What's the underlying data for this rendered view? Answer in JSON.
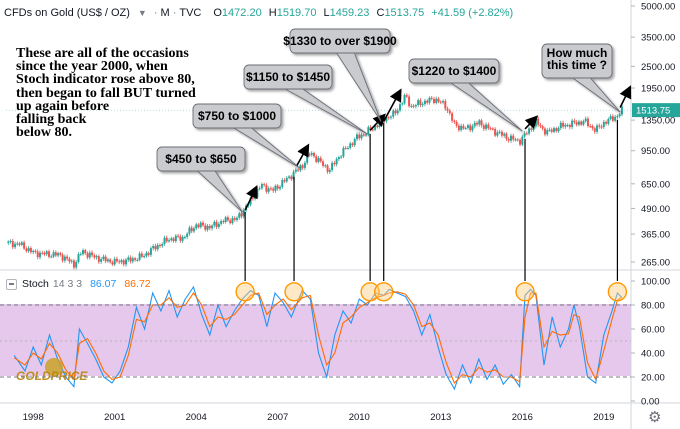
{
  "header": {
    "symbol": "CFDs on Gold (US$ / OZ)",
    "interval": "M",
    "source": "TVC",
    "o_key": "O",
    "o_val": "1472.20",
    "h_key": "H",
    "h_val": "1519.70",
    "l_key": "L",
    "l_val": "1459.23",
    "c_key": "C",
    "c_val": "1513.75",
    "change": "+41.59 (+2.82%)"
  },
  "indicator": {
    "name": "Stoch",
    "params": "14 3 3",
    "k_value": "86.07",
    "d_value": "86.72"
  },
  "intro_text": "These are all of the occasions\nsince the year 2000, when\nStoch indicator rose above 80,\nthen began to fall BUT turned\nup again before\nfalling back\nbelow 80.",
  "callouts": [
    {
      "text": "$450 to $650"
    },
    {
      "text": "$750 to $1000"
    },
    {
      "text": "$1150 to $1450"
    },
    {
      "text": "$1330 to over $1900"
    },
    {
      "text": "$1220 to $1400"
    },
    {
      "text": "How much\nthis time ?"
    }
  ],
  "last_price_label": "1513.75",
  "watermark": "GOLDPRICE",
  "colors": {
    "up": "#26a69a",
    "down": "#ef5350",
    "k_line": "#2196f3",
    "d_line": "#ff6d00",
    "band": "#e1bee7",
    "highlight_circle": "#ff9800",
    "callout_fill": "#c9cbcf"
  },
  "icons": [
    "settings-gear-icon",
    "chevron-down-icon"
  ],
  "chart_data": [
    {
      "type": "line",
      "title": "CFDs on Gold (US$ / OZ)",
      "scale": "log",
      "y_ticks": [
        "5000.00",
        "3500.00",
        "2500.00",
        "1950.00",
        "1350.00",
        "950.00",
        "650.00",
        "490.00",
        "365.00",
        "265.00"
      ],
      "x_ticks": [
        "1998",
        "2001",
        "2004",
        "2007",
        "2010",
        "2013",
        "2016",
        "2019"
      ],
      "series": [
        {
          "name": "CFDs on Gold (US$ / OZ)",
          "points": [
            [
              1997.0,
              330
            ],
            [
              1997.5,
              325
            ],
            [
              1998.0,
              295
            ],
            [
              1998.5,
              290
            ],
            [
              1999.0,
              287
            ],
            [
              1999.5,
              258
            ],
            [
              1999.8,
              300
            ],
            [
              2000.2,
              282
            ],
            [
              2000.6,
              272
            ],
            [
              2001.0,
              265
            ],
            [
              2001.5,
              270
            ],
            [
              2002.0,
              282
            ],
            [
              2002.5,
              315
            ],
            [
              2003.0,
              345
            ],
            [
              2003.5,
              350
            ],
            [
              2004.0,
              405
            ],
            [
              2004.5,
              395
            ],
            [
              2005.0,
              425
            ],
            [
              2005.5,
              435
            ],
            [
              2006.0,
              535
            ],
            [
              2006.4,
              640
            ],
            [
              2006.8,
              600
            ],
            [
              2007.3,
              680
            ],
            [
              2007.9,
              800
            ],
            [
              2008.2,
              930
            ],
            [
              2008.7,
              800
            ],
            [
              2008.9,
              760
            ],
            [
              2009.3,
              910
            ],
            [
              2009.9,
              1100
            ],
            [
              2010.5,
              1230
            ],
            [
              2010.9,
              1370
            ],
            [
              2011.3,
              1450
            ],
            [
              2011.7,
              1780
            ],
            [
              2011.9,
              1580
            ],
            [
              2012.3,
              1650
            ],
            [
              2012.8,
              1720
            ],
            [
              2013.2,
              1580
            ],
            [
              2013.5,
              1280
            ],
            [
              2013.9,
              1220
            ],
            [
              2014.4,
              1310
            ],
            [
              2014.9,
              1200
            ],
            [
              2015.5,
              1100
            ],
            [
              2015.9,
              1060
            ],
            [
              2016.5,
              1320
            ],
            [
              2016.9,
              1170
            ],
            [
              2017.5,
              1270
            ],
            [
              2017.9,
              1300
            ],
            [
              2018.3,
              1330
            ],
            [
              2018.7,
              1200
            ],
            [
              2019.0,
              1310
            ],
            [
              2019.5,
              1420
            ],
            [
              2019.67,
              1513.75
            ]
          ]
        }
      ],
      "annotations": [
        "$450 to $650",
        "$750 to $1000",
        "$1150 to $1450",
        "$1330 to over $1900",
        "$1220 to $1400",
        "How much\nthis time ?"
      ]
    },
    {
      "type": "line",
      "title": "Stoch 14 3 3",
      "ylim": [
        0,
        100
      ],
      "y_ticks": [
        "100.00",
        "80.00",
        "60.00",
        "40.00",
        "20.00",
        "0.00"
      ],
      "bands": [
        20,
        80
      ],
      "series": [
        {
          "name": "%K 86.07",
          "points": [
            [
              1997.3,
              38
            ],
            [
              1997.7,
              25
            ],
            [
              1998.0,
              45
            ],
            [
              1998.3,
              30
            ],
            [
              1998.6,
              55
            ],
            [
              1998.9,
              35
            ],
            [
              1999.2,
              20
            ],
            [
              1999.5,
              12
            ],
            [
              1999.7,
              60
            ],
            [
              2000.0,
              48
            ],
            [
              2000.3,
              35
            ],
            [
              2000.6,
              20
            ],
            [
              2000.9,
              15
            ],
            [
              2001.2,
              25
            ],
            [
              2001.5,
              45
            ],
            [
              2001.8,
              78
            ],
            [
              2002.1,
              60
            ],
            [
              2002.4,
              90
            ],
            [
              2002.7,
              75
            ],
            [
              2003.0,
              92
            ],
            [
              2003.3,
              70
            ],
            [
              2003.6,
              85
            ],
            [
              2003.9,
              95
            ],
            [
              2004.2,
              72
            ],
            [
              2004.5,
              55
            ],
            [
              2004.8,
              80
            ],
            [
              2005.1,
              62
            ],
            [
              2005.4,
              75
            ],
            [
              2005.7,
              85
            ],
            [
              2006.0,
              92
            ],
            [
              2006.3,
              88
            ],
            [
              2006.6,
              62
            ],
            [
              2006.9,
              90
            ],
            [
              2007.2,
              82
            ],
            [
              2007.5,
              70
            ],
            [
              2007.9,
              92
            ],
            [
              2008.2,
              85
            ],
            [
              2008.5,
              40
            ],
            [
              2008.8,
              20
            ],
            [
              2009.1,
              55
            ],
            [
              2009.4,
              75
            ],
            [
              2009.7,
              65
            ],
            [
              2010.0,
              85
            ],
            [
              2010.3,
              80
            ],
            [
              2010.6,
              90
            ],
            [
              2010.9,
              88
            ],
            [
              2011.1,
              93
            ],
            [
              2011.4,
              90
            ],
            [
              2011.7,
              87
            ],
            [
              2012.0,
              75
            ],
            [
              2012.3,
              55
            ],
            [
              2012.6,
              72
            ],
            [
              2012.9,
              45
            ],
            [
              2013.2,
              22
            ],
            [
              2013.5,
              10
            ],
            [
              2013.8,
              30
            ],
            [
              2014.1,
              15
            ],
            [
              2014.4,
              35
            ],
            [
              2014.7,
              18
            ],
            [
              2015.0,
              30
            ],
            [
              2015.3,
              14
            ],
            [
              2015.6,
              22
            ],
            [
              2015.9,
              12
            ],
            [
              2016.1,
              88
            ],
            [
              2016.3,
              93
            ],
            [
              2016.5,
              88
            ],
            [
              2016.8,
              30
            ],
            [
              2017.1,
              70
            ],
            [
              2017.4,
              45
            ],
            [
              2017.7,
              60
            ],
            [
              2017.9,
              80
            ],
            [
              2018.1,
              62
            ],
            [
              2018.4,
              20
            ],
            [
              2018.7,
              15
            ],
            [
              2019.0,
              55
            ],
            [
              2019.3,
              75
            ],
            [
              2019.5,
              90
            ],
            [
              2019.67,
              86.07
            ]
          ]
        },
        {
          "name": "%D 86.72",
          "points": [
            [
              1997.3,
              36
            ],
            [
              1997.7,
              30
            ],
            [
              1998.0,
              40
            ],
            [
              1998.3,
              35
            ],
            [
              1998.6,
              48
            ],
            [
              1998.9,
              40
            ],
            [
              1999.2,
              26
            ],
            [
              1999.5,
              18
            ],
            [
              1999.7,
              48
            ],
            [
              2000.0,
              52
            ],
            [
              2000.3,
              40
            ],
            [
              2000.6,
              25
            ],
            [
              2000.9,
              18
            ],
            [
              2001.2,
              20
            ],
            [
              2001.5,
              38
            ],
            [
              2001.8,
              68
            ],
            [
              2002.1,
              66
            ],
            [
              2002.4,
              80
            ],
            [
              2002.7,
              80
            ],
            [
              2003.0,
              86
            ],
            [
              2003.3,
              78
            ],
            [
              2003.6,
              80
            ],
            [
              2003.9,
              90
            ],
            [
              2004.2,
              80
            ],
            [
              2004.5,
              62
            ],
            [
              2004.8,
              70
            ],
            [
              2005.1,
              68
            ],
            [
              2005.4,
              72
            ],
            [
              2005.7,
              80
            ],
            [
              2006.0,
              88
            ],
            [
              2006.3,
              90
            ],
            [
              2006.6,
              72
            ],
            [
              2006.9,
              80
            ],
            [
              2007.2,
              85
            ],
            [
              2007.5,
              76
            ],
            [
              2007.9,
              86
            ],
            [
              2008.2,
              88
            ],
            [
              2008.5,
              55
            ],
            [
              2008.8,
              30
            ],
            [
              2009.1,
              40
            ],
            [
              2009.4,
              65
            ],
            [
              2009.7,
              70
            ],
            [
              2010.0,
              78
            ],
            [
              2010.3,
              82
            ],
            [
              2010.6,
              86
            ],
            [
              2010.9,
              88
            ],
            [
              2011.1,
              90
            ],
            [
              2011.4,
              91
            ],
            [
              2011.7,
              89
            ],
            [
              2012.0,
              80
            ],
            [
              2012.3,
              62
            ],
            [
              2012.6,
              65
            ],
            [
              2012.9,
              55
            ],
            [
              2013.2,
              32
            ],
            [
              2013.5,
              15
            ],
            [
              2013.8,
              22
            ],
            [
              2014.1,
              20
            ],
            [
              2014.4,
              28
            ],
            [
              2014.7,
              24
            ],
            [
              2015.0,
              26
            ],
            [
              2015.3,
              20
            ],
            [
              2015.6,
              20
            ],
            [
              2015.9,
              16
            ],
            [
              2016.1,
              70
            ],
            [
              2016.3,
              90
            ],
            [
              2016.5,
              90
            ],
            [
              2016.8,
              45
            ],
            [
              2017.1,
              58
            ],
            [
              2017.4,
              55
            ],
            [
              2017.7,
              56
            ],
            [
              2017.9,
              72
            ],
            [
              2018.1,
              70
            ],
            [
              2018.4,
              32
            ],
            [
              2018.7,
              18
            ],
            [
              2019.0,
              42
            ],
            [
              2019.3,
              68
            ],
            [
              2019.5,
              84
            ],
            [
              2019.67,
              86.72
            ]
          ]
        }
      ],
      "highlights": [
        2005.8,
        2007.6,
        2010.4,
        2010.9,
        2016.1,
        2019.5
      ]
    }
  ]
}
